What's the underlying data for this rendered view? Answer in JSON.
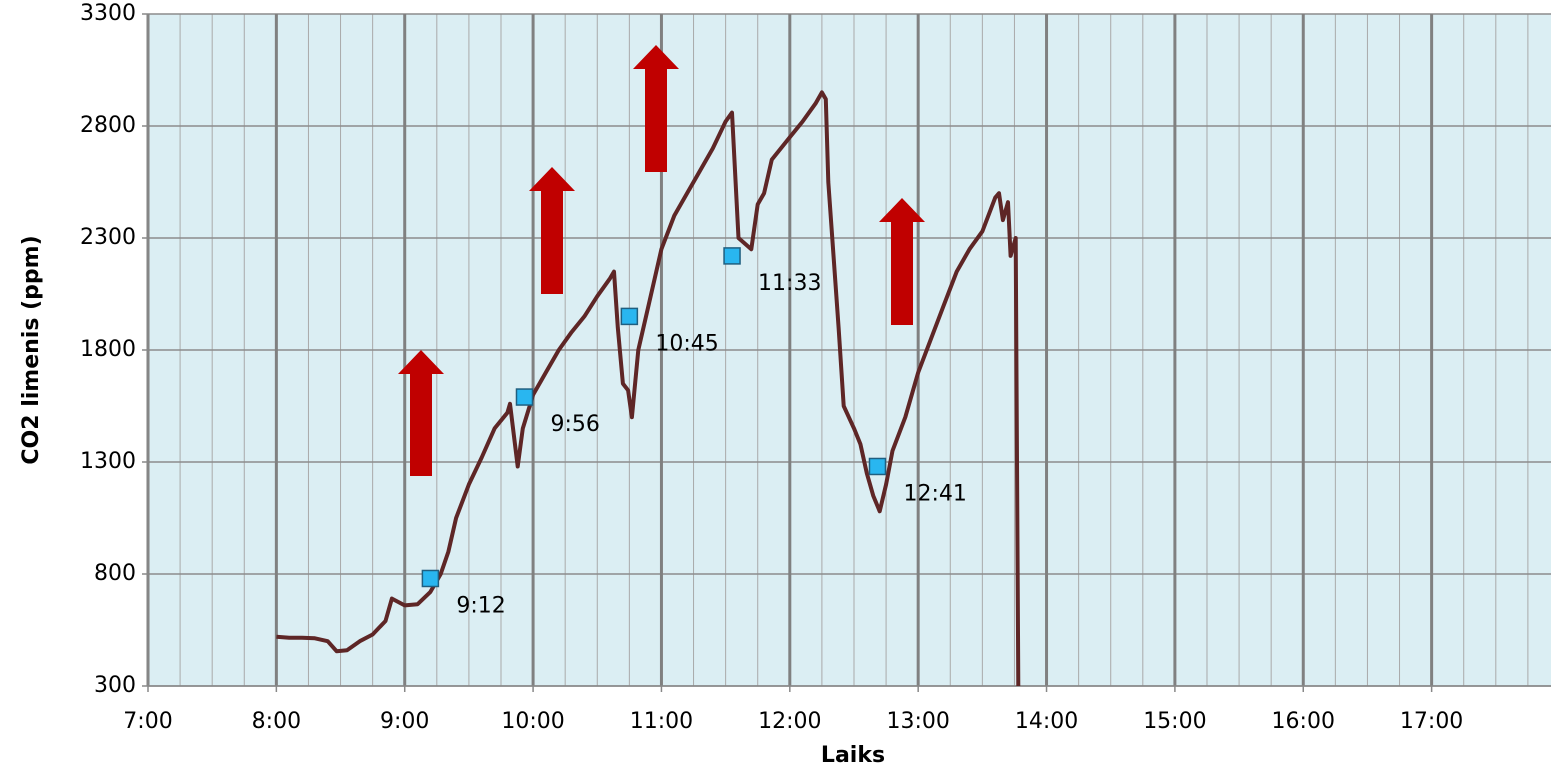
{
  "chart_data": {
    "type": "line",
    "x_label": "Laiks",
    "y_label": "CO2 limenis (ppm)",
    "xlim": [
      7,
      17.93
    ],
    "ylim": [
      300,
      3300
    ],
    "xticks": [
      {
        "value": 7,
        "label": "7:00"
      },
      {
        "value": 8,
        "label": "8:00"
      },
      {
        "value": 9,
        "label": "9:00"
      },
      {
        "value": 10,
        "label": "10:00"
      },
      {
        "value": 11,
        "label": "11:00"
      },
      {
        "value": 12,
        "label": "12:00"
      },
      {
        "value": 13,
        "label": "13:00"
      },
      {
        "value": 14,
        "label": "14:00"
      },
      {
        "value": 15,
        "label": "15:00"
      },
      {
        "value": 16,
        "label": "16:00"
      },
      {
        "value": 17,
        "label": "17:00"
      }
    ],
    "yticks": [
      300,
      800,
      1300,
      1800,
      2300,
      2800,
      3300
    ],
    "grid": true,
    "minor_x_grid_step": 0.25,
    "background": "#dbeef3",
    "series": [
      {
        "color": "#5e2626",
        "x": [
          8.0,
          8.1,
          8.2,
          8.3,
          8.4,
          8.47,
          8.55,
          8.65,
          8.75,
          8.85,
          8.9,
          9.0,
          9.1,
          9.2,
          9.28,
          9.34,
          9.4,
          9.5,
          9.6,
          9.7,
          9.8,
          9.82,
          9.88,
          9.92,
          10.0,
          10.1,
          10.2,
          10.3,
          10.4,
          10.5,
          10.6,
          10.63,
          10.66,
          10.7,
          10.74,
          10.77,
          10.82,
          10.9,
          11.0,
          11.1,
          11.2,
          11.3,
          11.4,
          11.5,
          11.55,
          11.6,
          11.7,
          11.75,
          11.8,
          11.86,
          12.0,
          12.1,
          12.2,
          12.25,
          12.28,
          12.3,
          12.38,
          12.42,
          12.5,
          12.55,
          12.6,
          12.65,
          12.7,
          12.75,
          12.8,
          12.9,
          13.0,
          13.1,
          13.2,
          13.3,
          13.4,
          13.5,
          13.6,
          13.63,
          13.66,
          13.7,
          13.72,
          13.76,
          13.78
        ],
        "values": [
          520,
          515,
          515,
          513,
          500,
          455,
          460,
          500,
          530,
          590,
          690,
          660,
          665,
          720,
          800,
          900,
          1050,
          1200,
          1320,
          1450,
          1520,
          1560,
          1280,
          1450,
          1600,
          1700,
          1800,
          1880,
          1950,
          2040,
          2120,
          2150,
          1900,
          1650,
          1620,
          1500,
          1800,
          2000,
          2250,
          2400,
          2500,
          2600,
          2700,
          2820,
          2860,
          2300,
          2250,
          2450,
          2500,
          2650,
          2750,
          2820,
          2900,
          2950,
          2920,
          2550,
          1900,
          1550,
          1450,
          1380,
          1250,
          1150,
          1080,
          1200,
          1350,
          1500,
          1700,
          1850,
          2000,
          2150,
          2250,
          2330,
          2480,
          2500,
          2380,
          2460,
          2220,
          2300,
          300
        ]
      }
    ],
    "markers": {
      "color": "#29b6f0",
      "x": [
        9.2,
        9.933,
        10.75,
        11.55,
        12.683
      ],
      "values": [
        780,
        1590,
        1950,
        2220,
        1280
      ],
      "labels": [
        "9:12",
        "9:56",
        "10:45",
        "11:33",
        "12:41"
      ]
    }
  }
}
